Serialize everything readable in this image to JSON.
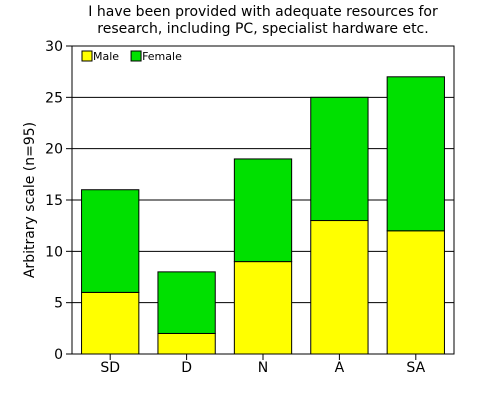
{
  "chart_data": {
    "type": "bar",
    "stacked": true,
    "title": [
      "I have been provided with adequate resources for",
      "research, including PC, specialist hardware etc."
    ],
    "xlabel": "",
    "ylabel": "Arbitrary scale (n=95)",
    "ylim": [
      0,
      30
    ],
    "yticks": [
      0,
      5,
      10,
      15,
      20,
      25,
      30
    ],
    "categories": [
      "SD",
      "D",
      "N",
      "A",
      "SA"
    ],
    "series": [
      {
        "name": "Male",
        "color": "#ffff00",
        "values": [
          6,
          2,
          9,
          13,
          12
        ]
      },
      {
        "name": "Female",
        "color": "#00e000",
        "values": [
          10,
          6,
          10,
          12,
          15
        ]
      }
    ],
    "grid": "horizontal",
    "legend": "top-left"
  }
}
